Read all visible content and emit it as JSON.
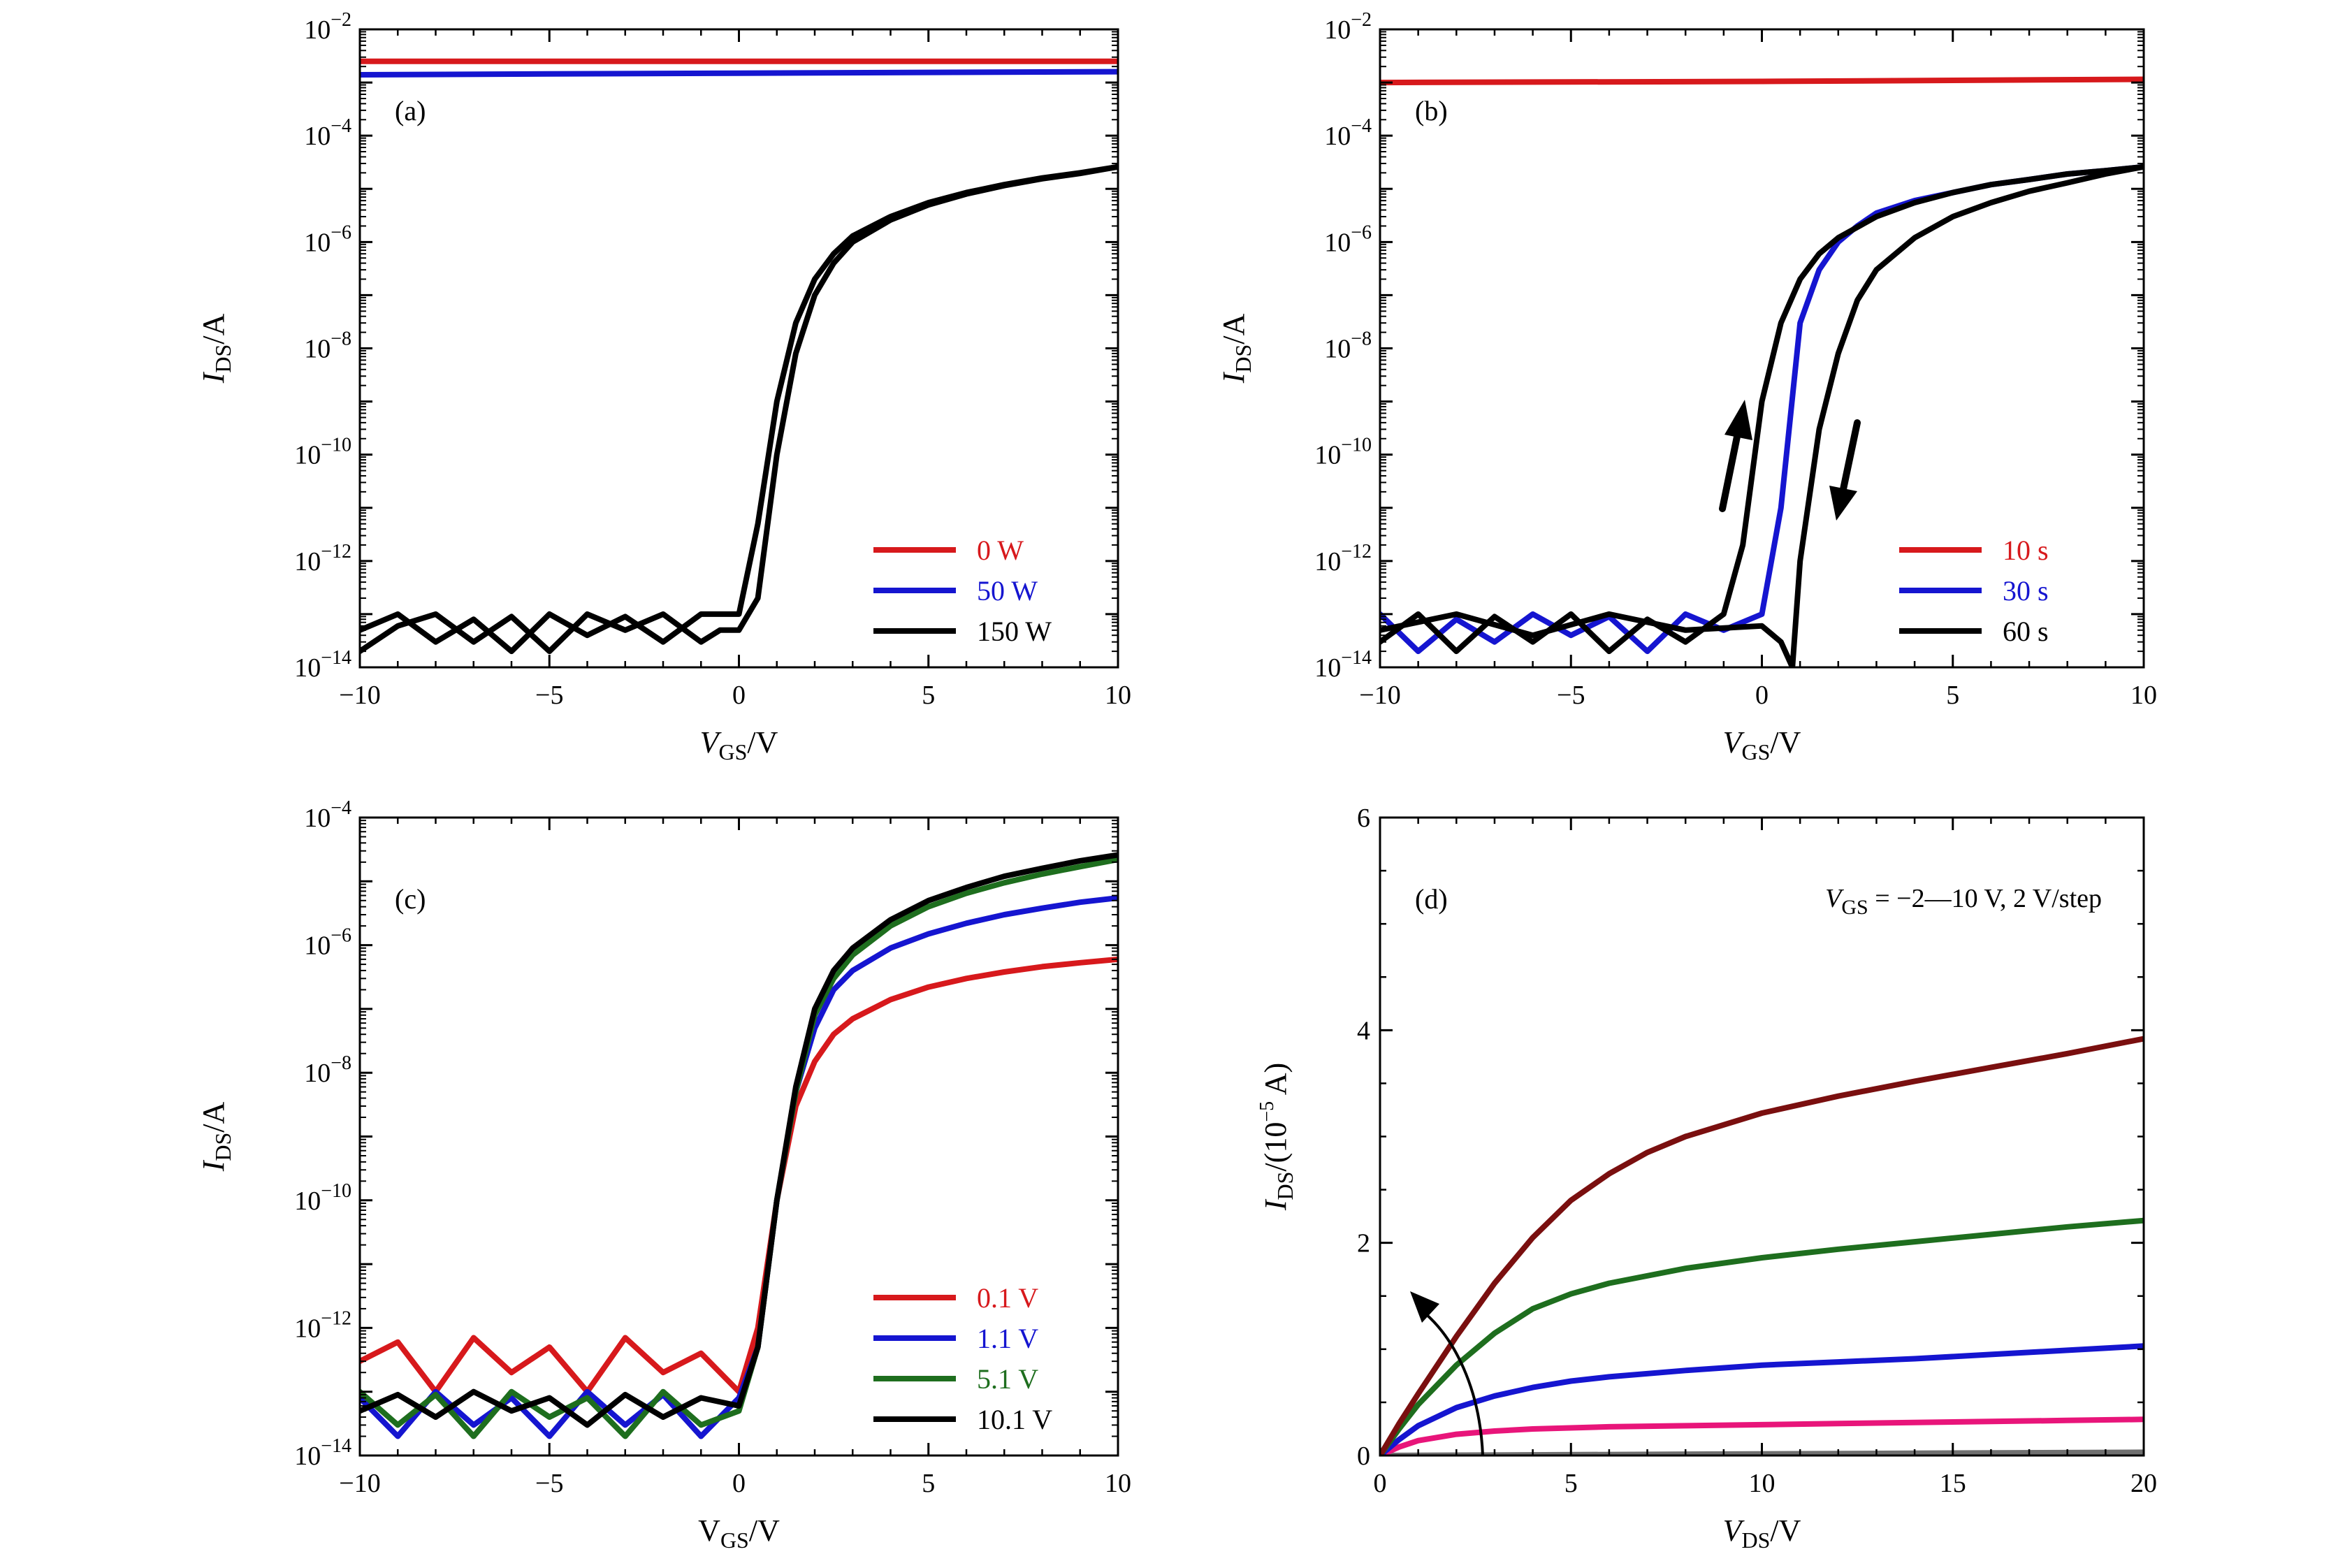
{
  "colors": {
    "red": "#d7191c",
    "blue": "#1515d0",
    "black": "#000000",
    "green": "#1e6e1e",
    "darkred": "#7a0f0f",
    "pink": "#e8157a",
    "gray": "#707070"
  },
  "chart_data": [
    {
      "type": "line",
      "panel": "(a)",
      "xlabel": {
        "main": "V",
        "sub": "GS",
        "rest": "/V"
      },
      "ylabel": {
        "main": "I",
        "sub": "DS",
        "rest": "/A"
      },
      "xlim": [
        -10,
        10
      ],
      "ylim": [
        1e-14,
        0.01
      ],
      "yscale": "log",
      "xticks": [
        -10,
        -5,
        0,
        5,
        10
      ],
      "xtick_labels": [
        "−10",
        "−5",
        "0",
        "5",
        "10"
      ],
      "yticks": [
        -2,
        -4,
        -6,
        -8,
        -10,
        -12,
        -14
      ],
      "ytick_labels": [
        "10",
        "10",
        "10",
        "10",
        "10",
        "10",
        "10"
      ],
      "ytick_exps": [
        "−2",
        "−4",
        "−6",
        "−8",
        "−10",
        "−12",
        "−14"
      ],
      "legend": [
        {
          "label": "0 W",
          "color": "red"
        },
        {
          "label": "50 W",
          "color": "blue"
        },
        {
          "label": "150 W",
          "color": "black"
        }
      ],
      "series": [
        {
          "name": "0 W",
          "color": "red",
          "x": [
            -10,
            10
          ],
          "y": [
            0.0025,
            0.0025
          ]
        },
        {
          "name": "50 W",
          "color": "blue",
          "x": [
            -10,
            -5,
            0,
            10
          ],
          "y": [
            0.0014,
            0.00145,
            0.0015,
            0.0016
          ]
        },
        {
          "name": "150 W",
          "color": "black",
          "x": [
            -10,
            -9,
            -8,
            -7,
            -6,
            -5,
            -4,
            -3,
            -2,
            -1,
            -0.5,
            0,
            0.5,
            1,
            1.5,
            2,
            2.5,
            3,
            4,
            5,
            6,
            7,
            8,
            9,
            10
          ],
          "y": [
            5e-14,
            1e-13,
            3e-14,
            8e-14,
            2e-14,
            1e-13,
            4e-14,
            9e-14,
            3e-14,
            1e-13,
            1e-13,
            1e-13,
            5e-12,
            1e-09,
            3e-08,
            2e-07,
            6e-07,
            1.3e-06,
            3e-06,
            5.5e-06,
            8.5e-06,
            1.2e-05,
            1.6e-05,
            2e-05,
            2.6e-05
          ]
        },
        {
          "name": "150 W",
          "color": "black",
          "x": [
            -10,
            -9,
            -8,
            -7,
            -6,
            -5,
            -4,
            -3,
            -2,
            -1,
            -0.5,
            0,
            0.5,
            1,
            1.5,
            2,
            2.5,
            3,
            4,
            5,
            6,
            7,
            8,
            9,
            10
          ],
          "y": [
            2e-14,
            6e-14,
            1e-13,
            3e-14,
            9e-14,
            2e-14,
            1e-13,
            5e-14,
            1e-13,
            3e-14,
            5e-14,
            5e-14,
            2e-13,
            1e-10,
            8e-09,
            1e-07,
            4e-07,
            1e-06,
            2.6e-06,
            5e-06,
            8e-06,
            1.15e-05,
            1.55e-05,
            1.95e-05,
            2.6e-05
          ]
        }
      ]
    },
    {
      "type": "line",
      "panel": "(b)",
      "xlabel": {
        "main": "V",
        "sub": "GS",
        "rest": "/V"
      },
      "ylabel": {
        "main": "I",
        "sub": "DS",
        "rest": "/A"
      },
      "xlim": [
        -10,
        10
      ],
      "ylim": [
        1e-14,
        0.01
      ],
      "yscale": "log",
      "xticks": [
        -10,
        -5,
        0,
        5,
        10
      ],
      "xtick_labels": [
        "−10",
        "−5",
        "0",
        "5",
        "10"
      ],
      "yticks": [
        -2,
        -4,
        -6,
        -8,
        -10,
        -12,
        -14
      ],
      "ytick_labels": [
        "10",
        "10",
        "10",
        "10",
        "10",
        "10",
        "10"
      ],
      "ytick_exps": [
        "−2",
        "−4",
        "−6",
        "−8",
        "−10",
        "−12",
        "−14"
      ],
      "legend": [
        {
          "label": "10 s",
          "color": "red"
        },
        {
          "label": "30 s",
          "color": "blue"
        },
        {
          "label": "60 s",
          "color": "black"
        }
      ],
      "series": [
        {
          "name": "10 s",
          "color": "red",
          "x": [
            -10,
            0,
            10
          ],
          "y": [
            0.001,
            0.00105,
            0.00115
          ]
        },
        {
          "name": "30 s",
          "color": "blue",
          "x": [
            -10,
            -9,
            -8,
            -7,
            -6,
            -5,
            -4,
            -3,
            -2,
            -1,
            0,
            0.5,
            1,
            1.5,
            2,
            2.5,
            3,
            4,
            5,
            6,
            7,
            8,
            9,
            10
          ],
          "y": [
            1e-13,
            2e-14,
            8e-14,
            3e-14,
            1e-13,
            4e-14,
            9e-14,
            2e-14,
            1e-13,
            5e-14,
            1e-13,
            1e-11,
            3e-08,
            3e-07,
            1e-06,
            2e-06,
            3.5e-06,
            6e-06,
            8.5e-06,
            1.2e-05,
            1.5e-05,
            1.9e-05,
            2.2e-05,
            2.6e-05
          ]
        },
        {
          "name": "60 s",
          "color": "black",
          "x": [
            -10,
            -9,
            -8,
            -7,
            -6,
            -5,
            -4,
            -3,
            -2,
            -1,
            -0.5,
            0,
            0.5,
            1,
            1.5,
            2,
            3,
            4,
            5,
            6,
            7,
            8,
            9,
            10
          ],
          "y": [
            3e-14,
            1e-13,
            2e-14,
            9e-14,
            3e-14,
            1e-13,
            2e-14,
            8e-14,
            3e-14,
            1e-13,
            2e-12,
            1e-09,
            3e-08,
            2e-07,
            6e-07,
            1.2e-06,
            3e-06,
            5.5e-06,
            8.5e-06,
            1.2e-05,
            1.5e-05,
            1.9e-05,
            2.2e-05,
            2.6e-05
          ]
        },
        {
          "name": "60 s",
          "color": "black",
          "x": [
            -10,
            -8,
            -6,
            -4,
            -2,
            0,
            0.5,
            0.8,
            1,
            1.5,
            2,
            2.5,
            3,
            4,
            5,
            6,
            7,
            8,
            9,
            10
          ],
          "y": [
            5e-14,
            1e-13,
            4e-14,
            1e-13,
            5e-14,
            6e-14,
            3e-14,
            1e-14,
            1e-12,
            3e-10,
            8e-09,
            8e-08,
            3e-07,
            1.2e-06,
            3e-06,
            5.5e-06,
            9e-06,
            1.3e-05,
            1.9e-05,
            2.6e-05
          ]
        }
      ],
      "annotations": [
        "arrow-up",
        "arrow-down"
      ]
    },
    {
      "type": "line",
      "panel": "(c)",
      "xlabel": {
        "main": "V",
        "sub": "GS",
        "rest": "/V",
        "upright": true
      },
      "ylabel": {
        "main": "I",
        "sub": "DS",
        "rest": "/A"
      },
      "xlim": [
        -10,
        10
      ],
      "ylim": [
        1e-14,
        0.0001
      ],
      "yscale": "log",
      "xticks": [
        -10,
        -5,
        0,
        5,
        10
      ],
      "xtick_labels": [
        "−10",
        "−5",
        "0",
        "5",
        "10"
      ],
      "yticks": [
        -4,
        -6,
        -8,
        -10,
        -12,
        -14
      ],
      "ytick_labels": [
        "10",
        "10",
        "10",
        "10",
        "10",
        "10"
      ],
      "ytick_exps": [
        "−4",
        "−6",
        "−8",
        "−10",
        "−12",
        "−14"
      ],
      "legend": [
        {
          "label": "0.1 V",
          "color": "red"
        },
        {
          "label": "1.1 V",
          "color": "blue"
        },
        {
          "label": "5.1 V",
          "color": "green"
        },
        {
          "label": "10.1 V",
          "color": "black"
        }
      ],
      "series": [
        {
          "name": "0.1 V",
          "color": "red",
          "x": [
            -10,
            -9,
            -8,
            -7,
            -6,
            -5,
            -4,
            -3,
            -2,
            -1,
            0,
            0.5,
            1,
            1.5,
            2,
            2.5,
            3,
            4,
            5,
            6,
            7,
            8,
            9,
            10
          ],
          "y": [
            3e-13,
            6e-13,
            1e-13,
            7e-13,
            2e-13,
            5e-13,
            1e-13,
            7e-13,
            2e-13,
            4e-13,
            1e-13,
            1e-12,
            1e-10,
            3e-09,
            1.5e-08,
            4e-08,
            7e-08,
            1.4e-07,
            2.2e-07,
            3e-07,
            3.8e-07,
            4.6e-07,
            5.3e-07,
            6e-07
          ]
        },
        {
          "name": "1.1 V",
          "color": "blue",
          "x": [
            -10,
            -9,
            -8,
            -7,
            -6,
            -5,
            -4,
            -3,
            -2,
            -1,
            0,
            0.5,
            1,
            1.5,
            2,
            2.5,
            3,
            4,
            5,
            6,
            7,
            8,
            9,
            10
          ],
          "y": [
            8e-14,
            2e-14,
            1e-13,
            3e-14,
            8e-14,
            2e-14,
            1e-13,
            3e-14,
            9e-14,
            2e-14,
            8e-14,
            5e-13,
            1e-10,
            5e-09,
            5e-08,
            2e-07,
            4e-07,
            9e-07,
            1.5e-06,
            2.2e-06,
            3e-06,
            3.8e-06,
            4.7e-06,
            5.5e-06
          ]
        },
        {
          "name": "5.1 V",
          "color": "green",
          "x": [
            -10,
            -9,
            -8,
            -7,
            -6,
            -5,
            -4,
            -3,
            -2,
            -1,
            0,
            0.5,
            1,
            1.5,
            2,
            2.5,
            3,
            4,
            5,
            6,
            7,
            8,
            9,
            10
          ],
          "y": [
            1e-13,
            3e-14,
            9e-14,
            2e-14,
            1e-13,
            4e-14,
            8e-14,
            2e-14,
            1e-13,
            3e-14,
            5e-14,
            5e-13,
            1e-10,
            5e-09,
            8e-08,
            3e-07,
            7e-07,
            2e-06,
            4e-06,
            6.5e-06,
            9.5e-06,
            1.3e-05,
            1.7e-05,
            2.2e-05
          ]
        },
        {
          "name": "10.1 V",
          "color": "black",
          "x": [
            -10,
            -9,
            -8,
            -7,
            -6,
            -5,
            -4,
            -3,
            -2,
            -1,
            0,
            0.5,
            1,
            1.5,
            2,
            2.5,
            3,
            4,
            5,
            6,
            7,
            8,
            9,
            10
          ],
          "y": [
            5e-14,
            9e-14,
            4e-14,
            1e-13,
            5e-14,
            8e-14,
            3e-14,
            9e-14,
            4e-14,
            8e-14,
            6e-14,
            5e-13,
            1e-10,
            6e-09,
            1e-07,
            4e-07,
            9e-07,
            2.5e-06,
            5e-06,
            8e-06,
            1.2e-05,
            1.6e-05,
            2.1e-05,
            2.6e-05
          ]
        }
      ]
    },
    {
      "type": "line",
      "panel": "(d)",
      "xlabel": {
        "main": "V",
        "sub": "DS",
        "rest": "/V"
      },
      "ylabel": {
        "main": "I",
        "sub": "DS",
        "rest": "/(10",
        "sup": "−5",
        "rest2": " A)"
      },
      "xlim": [
        0,
        20
      ],
      "ylim": [
        0,
        6
      ],
      "yscale": "linear",
      "xticks": [
        0,
        5,
        10,
        15,
        20
      ],
      "xtick_labels": [
        "0",
        "5",
        "10",
        "15",
        "20"
      ],
      "yticks": [
        0,
        2,
        4,
        6
      ],
      "ytick_labels": [
        "0",
        "2",
        "4",
        "6"
      ],
      "annotation_text": {
        "main": "V",
        "sub": "GS",
        "rest": " = −2—10 V, 2 V/step"
      },
      "series": [
        {
          "color": "gray",
          "x": [
            0,
            20
          ],
          "y": [
            0.0,
            0.03
          ]
        },
        {
          "color": "pink",
          "x": [
            0,
            0.5,
            1,
            2,
            3,
            4,
            6,
            8,
            10,
            12,
            14,
            16,
            18,
            20
          ],
          "y": [
            0,
            0.08,
            0.14,
            0.2,
            0.23,
            0.25,
            0.27,
            0.28,
            0.29,
            0.3,
            0.31,
            0.32,
            0.33,
            0.34
          ]
        },
        {
          "color": "blue",
          "x": [
            0,
            0.5,
            1,
            2,
            3,
            4,
            5,
            6,
            8,
            10,
            12,
            14,
            16,
            18,
            20
          ],
          "y": [
            0,
            0.15,
            0.28,
            0.45,
            0.56,
            0.64,
            0.7,
            0.74,
            0.8,
            0.85,
            0.88,
            0.91,
            0.95,
            0.99,
            1.03
          ]
        },
        {
          "color": "green",
          "x": [
            0,
            0.5,
            1,
            2,
            3,
            4,
            5,
            6,
            8,
            10,
            12,
            14,
            16,
            18,
            20
          ],
          "y": [
            0,
            0.25,
            0.48,
            0.85,
            1.15,
            1.38,
            1.52,
            1.62,
            1.76,
            1.86,
            1.94,
            2.01,
            2.08,
            2.15,
            2.21
          ]
        },
        {
          "color": "darkred",
          "x": [
            0,
            0.5,
            1,
            2,
            3,
            4,
            5,
            6,
            7,
            8,
            10,
            12,
            14,
            16,
            18,
            20
          ],
          "y": [
            0,
            0.3,
            0.58,
            1.12,
            1.62,
            2.05,
            2.4,
            2.65,
            2.85,
            3.0,
            3.22,
            3.38,
            3.52,
            3.65,
            3.78,
            3.92
          ]
        }
      ]
    }
  ]
}
